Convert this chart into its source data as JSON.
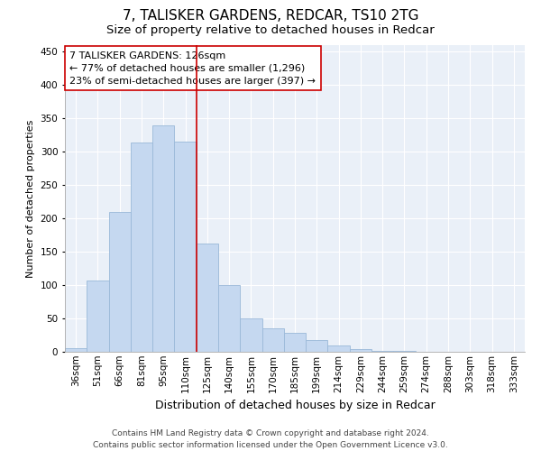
{
  "title1": "7, TALISKER GARDENS, REDCAR, TS10 2TG",
  "title2": "Size of property relative to detached houses in Redcar",
  "xlabel": "Distribution of detached houses by size in Redcar",
  "ylabel": "Number of detached properties",
  "categories": [
    "36sqm",
    "51sqm",
    "66sqm",
    "81sqm",
    "95sqm",
    "110sqm",
    "125sqm",
    "140sqm",
    "155sqm",
    "170sqm",
    "185sqm",
    "199sqm",
    "214sqm",
    "229sqm",
    "244sqm",
    "259sqm",
    "274sqm",
    "288sqm",
    "303sqm",
    "318sqm",
    "333sqm"
  ],
  "values": [
    5,
    107,
    210,
    314,
    340,
    315,
    163,
    100,
    50,
    35,
    28,
    18,
    10,
    4,
    2,
    1,
    0,
    0,
    0,
    0,
    0
  ],
  "bar_color": "#c5d8f0",
  "bar_edge_color": "#9ab8d8",
  "vline_color": "#cc0000",
  "annotation_line1": "7 TALISKER GARDENS: 126sqm",
  "annotation_line2": "← 77% of detached houses are smaller (1,296)",
  "annotation_line3": "23% of semi-detached houses are larger (397) →",
  "annotation_box_color": "#ffffff",
  "annotation_box_edge": "#cc0000",
  "ylim": [
    0,
    460
  ],
  "yticks": [
    0,
    50,
    100,
    150,
    200,
    250,
    300,
    350,
    400,
    450
  ],
  "background_color": "#eaf0f8",
  "footer1": "Contains HM Land Registry data © Crown copyright and database right 2024.",
  "footer2": "Contains public sector information licensed under the Open Government Licence v3.0.",
  "title1_fontsize": 11,
  "title2_fontsize": 9.5,
  "xlabel_fontsize": 9,
  "ylabel_fontsize": 8,
  "tick_fontsize": 7.5,
  "annotation_fontsize": 8,
  "footer_fontsize": 6.5
}
